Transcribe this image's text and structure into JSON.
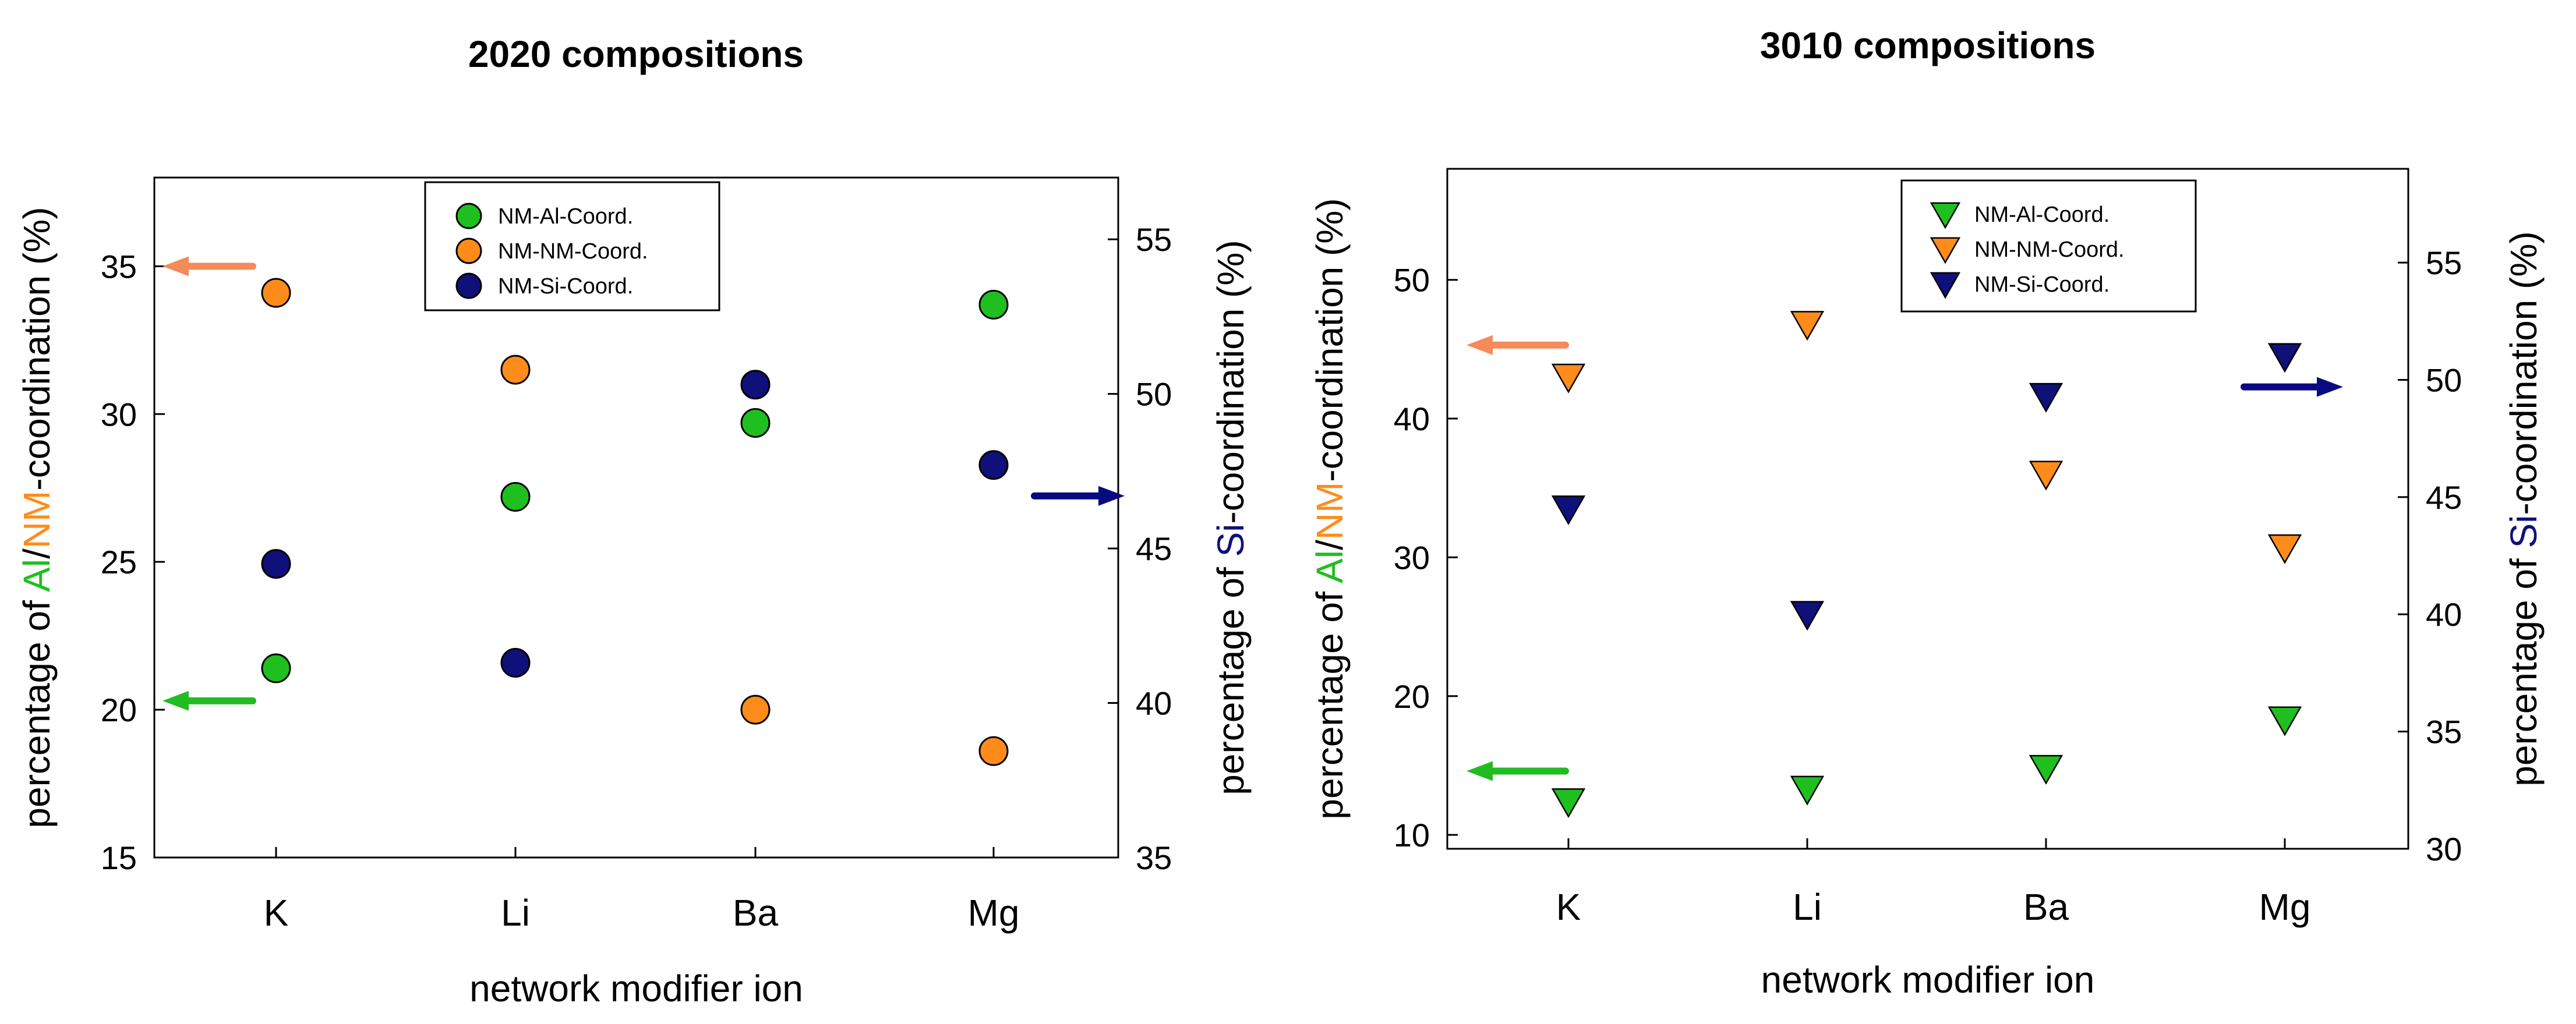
{
  "chart_data": [
    {
      "type": "scatter",
      "title": "2020 compositions",
      "xlabel": "network modifier ion",
      "ylabel_left": {
        "prefix": "percentage of ",
        "al": "Al",
        "slash": "/",
        "nm": "NM",
        "suffix": "-coordination (%)"
      },
      "ylabel_right": {
        "prefix": "percentage of ",
        "si": "Si",
        "suffix": "-coordination (%)"
      },
      "categories": [
        "K",
        "Li",
        "Ba",
        "Mg"
      ],
      "ylim_left": [
        15,
        38
      ],
      "ylim_right": [
        35,
        57
      ],
      "yticks_left": [
        15,
        20,
        25,
        30,
        35
      ],
      "yticks_right": [
        35,
        40,
        45,
        50,
        55
      ],
      "marker": "circle",
      "legend_position": "top-center",
      "series": [
        {
          "name": "NM-Al-Coord.",
          "axis": "left",
          "color": "#1fbf1f",
          "values": [
            21.4,
            27.2,
            29.7,
            33.7
          ]
        },
        {
          "name": "NM-NM-Coord.",
          "axis": "left",
          "color": "#ff8c1a",
          "values": [
            34.1,
            31.5,
            20.0,
            18.6
          ]
        },
        {
          "name": "NM-Si-Coord.",
          "axis": "right",
          "color": "#10107a",
          "values": [
            44.5,
            41.3,
            50.3,
            47.7
          ]
        }
      ],
      "arrows": [
        {
          "series": "NM-NM-Coord.",
          "color": "#f58a5a",
          "direction": "left",
          "axis": "left",
          "value": 35.0
        },
        {
          "series": "NM-Al-Coord.",
          "color": "#22bb22",
          "direction": "left",
          "axis": "left",
          "value": 20.3
        },
        {
          "series": "NM-Si-Coord.",
          "color": "#0a0a80",
          "direction": "right",
          "axis": "right",
          "value": 46.7
        }
      ]
    },
    {
      "type": "scatter",
      "title": "3010 compositions",
      "xlabel": "network modifier ion",
      "ylabel_left": {
        "prefix": "percentage of ",
        "al": "Al",
        "slash": "/",
        "nm": "NM",
        "suffix": "-coordination (%)"
      },
      "ylabel_right": {
        "prefix": "percentage of ",
        "si": "Si",
        "suffix": "-coordination (%)"
      },
      "categories": [
        "K",
        "Li",
        "Ba",
        "Mg"
      ],
      "ylim_left": [
        9,
        58
      ],
      "ylim_right": [
        30,
        59
      ],
      "yticks_left": [
        10,
        20,
        30,
        40,
        50
      ],
      "yticks_right": [
        30,
        35,
        40,
        45,
        50,
        55
      ],
      "marker": "triangle-down",
      "legend_position": "top-right",
      "series": [
        {
          "name": "NM-Al-Coord.",
          "axis": "left",
          "color": "#1fbf1f",
          "values": [
            12.4,
            13.3,
            14.8,
            18.3
          ]
        },
        {
          "name": "NM-NM-Coord.",
          "axis": "left",
          "color": "#ff8c1a",
          "values": [
            43.0,
            46.8,
            36.0,
            30.7
          ]
        },
        {
          "name": "NM-Si-Coord.",
          "axis": "right",
          "color": "#10107a",
          "values": [
            44.5,
            40.0,
            49.3,
            51.0
          ]
        }
      ],
      "arrows": [
        {
          "series": "NM-NM-Coord.",
          "color": "#f58a5a",
          "direction": "left",
          "axis": "left",
          "value": 45.3
        },
        {
          "series": "NM-Al-Coord.",
          "color": "#22bb22",
          "direction": "left",
          "axis": "left",
          "value": 14.6
        },
        {
          "series": "NM-Si-Coord.",
          "color": "#0a0a80",
          "direction": "right",
          "axis": "right",
          "value": 49.7
        }
      ]
    }
  ]
}
